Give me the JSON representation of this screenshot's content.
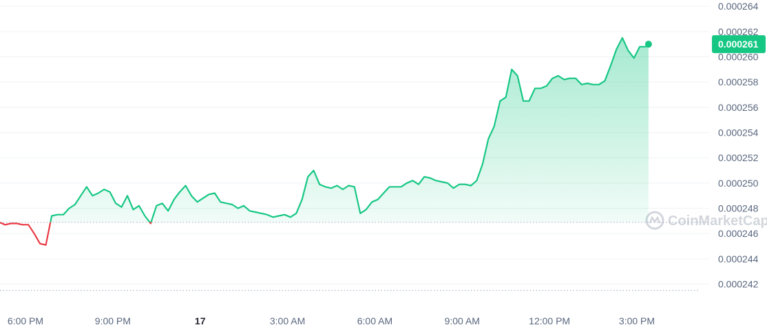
{
  "chart_data": {
    "type": "area",
    "x_ticks": [
      {
        "label": "6:00 PM",
        "hour": 18
      },
      {
        "label": "9:00 PM",
        "hour": 21
      },
      {
        "label": "17",
        "hour": 24
      },
      {
        "label": "3:00 AM",
        "hour": 27
      },
      {
        "label": "6:00 AM",
        "hour": 30
      },
      {
        "label": "9:00 AM",
        "hour": 33
      },
      {
        "label": "12:00 PM",
        "hour": 36
      },
      {
        "label": "3:00 PM",
        "hour": 39
      }
    ],
    "y_ticks": [
      "0.000242",
      "0.000244",
      "0.000246",
      "0.000248",
      "0.000250",
      "0.000252",
      "0.000254",
      "0.000256",
      "0.000258",
      "0.000260",
      "0.000262",
      "0.000264"
    ],
    "ylim": [
      0.0002405,
      0.0002645
    ],
    "reference_price": 0.0002469,
    "low_line": 0.0002415,
    "current_price_label": "0.000261",
    "colors": {
      "up": "#16c784",
      "down": "#ea3943",
      "label_bg": "#16c784",
      "grid": "#eff2f5"
    },
    "points": [
      [
        17.1,
        0.0002469
      ],
      [
        17.3,
        0.0002467
      ],
      [
        17.5,
        0.0002468
      ],
      [
        17.7,
        0.0002468
      ],
      [
        17.9,
        0.0002467
      ],
      [
        18.1,
        0.0002467
      ],
      [
        18.3,
        0.000246
      ],
      [
        18.5,
        0.0002452
      ],
      [
        18.7,
        0.0002451
      ],
      [
        18.9,
        0.0002474
      ],
      [
        19.1,
        0.0002475
      ],
      [
        19.3,
        0.0002475
      ],
      [
        19.5,
        0.000248
      ],
      [
        19.7,
        0.0002483
      ],
      [
        19.9,
        0.000249
      ],
      [
        20.1,
        0.0002497
      ],
      [
        20.3,
        0.000249
      ],
      [
        20.5,
        0.0002492
      ],
      [
        20.7,
        0.0002495
      ],
      [
        20.9,
        0.0002493
      ],
      [
        21.1,
        0.0002484
      ],
      [
        21.3,
        0.0002481
      ],
      [
        21.5,
        0.000249
      ],
      [
        21.7,
        0.0002479
      ],
      [
        21.9,
        0.0002482
      ],
      [
        22.1,
        0.0002474
      ],
      [
        22.3,
        0.0002468
      ],
      [
        22.5,
        0.0002482
      ],
      [
        22.7,
        0.0002484
      ],
      [
        22.9,
        0.0002478
      ],
      [
        23.1,
        0.0002487
      ],
      [
        23.3,
        0.0002493
      ],
      [
        23.5,
        0.0002498
      ],
      [
        23.7,
        0.000249
      ],
      [
        23.9,
        0.0002485
      ],
      [
        24.1,
        0.0002488
      ],
      [
        24.3,
        0.0002491
      ],
      [
        24.5,
        0.0002492
      ],
      [
        24.7,
        0.0002485
      ],
      [
        24.9,
        0.0002484
      ],
      [
        25.1,
        0.0002483
      ],
      [
        25.3,
        0.000248
      ],
      [
        25.5,
        0.0002482
      ],
      [
        25.7,
        0.0002478
      ],
      [
        25.9,
        0.0002477
      ],
      [
        26.1,
        0.0002476
      ],
      [
        26.3,
        0.0002475
      ],
      [
        26.5,
        0.0002473
      ],
      [
        26.7,
        0.0002474
      ],
      [
        26.9,
        0.0002475
      ],
      [
        27.1,
        0.0002473
      ],
      [
        27.3,
        0.0002476
      ],
      [
        27.5,
        0.0002487
      ],
      [
        27.7,
        0.0002505
      ],
      [
        27.9,
        0.000251
      ],
      [
        28.1,
        0.0002499
      ],
      [
        28.3,
        0.0002497
      ],
      [
        28.5,
        0.0002496
      ],
      [
        28.7,
        0.0002498
      ],
      [
        28.9,
        0.0002495
      ],
      [
        29.1,
        0.0002498
      ],
      [
        29.3,
        0.0002497
      ],
      [
        29.5,
        0.0002476
      ],
      [
        29.7,
        0.0002479
      ],
      [
        29.9,
        0.0002485
      ],
      [
        30.1,
        0.0002487
      ],
      [
        30.3,
        0.0002492
      ],
      [
        30.5,
        0.0002497
      ],
      [
        30.7,
        0.0002497
      ],
      [
        30.9,
        0.0002497
      ],
      [
        31.1,
        0.00025
      ],
      [
        31.3,
        0.0002502
      ],
      [
        31.5,
        0.0002499
      ],
      [
        31.7,
        0.0002505
      ],
      [
        31.9,
        0.0002504
      ],
      [
        32.1,
        0.0002502
      ],
      [
        32.3,
        0.0002501
      ],
      [
        32.5,
        0.00025
      ],
      [
        32.7,
        0.0002496
      ],
      [
        32.9,
        0.0002499
      ],
      [
        33.1,
        0.0002499
      ],
      [
        33.3,
        0.0002498
      ],
      [
        33.5,
        0.0002502
      ],
      [
        33.7,
        0.0002515
      ],
      [
        33.9,
        0.0002535
      ],
      [
        34.1,
        0.0002545
      ],
      [
        34.3,
        0.0002565
      ],
      [
        34.5,
        0.0002568
      ],
      [
        34.7,
        0.000259
      ],
      [
        34.9,
        0.0002585
      ],
      [
        35.1,
        0.0002565
      ],
      [
        35.3,
        0.0002565
      ],
      [
        35.5,
        0.0002575
      ],
      [
        35.7,
        0.0002575
      ],
      [
        35.9,
        0.0002577
      ],
      [
        36.1,
        0.0002583
      ],
      [
        36.3,
        0.0002585
      ],
      [
        36.5,
        0.0002582
      ],
      [
        36.7,
        0.0002583
      ],
      [
        36.9,
        0.0002583
      ],
      [
        37.1,
        0.0002578
      ],
      [
        37.3,
        0.0002579
      ],
      [
        37.5,
        0.0002578
      ],
      [
        37.7,
        0.0002578
      ],
      [
        37.9,
        0.0002581
      ],
      [
        38.1,
        0.0002593
      ],
      [
        38.3,
        0.0002606
      ],
      [
        38.5,
        0.0002615
      ],
      [
        38.7,
        0.0002605
      ],
      [
        38.9,
        0.0002599
      ],
      [
        39.1,
        0.0002608
      ],
      [
        39.3,
        0.0002608
      ],
      [
        39.4,
        0.000261
      ]
    ]
  },
  "watermark": {
    "text": "CoinMarketCap"
  }
}
